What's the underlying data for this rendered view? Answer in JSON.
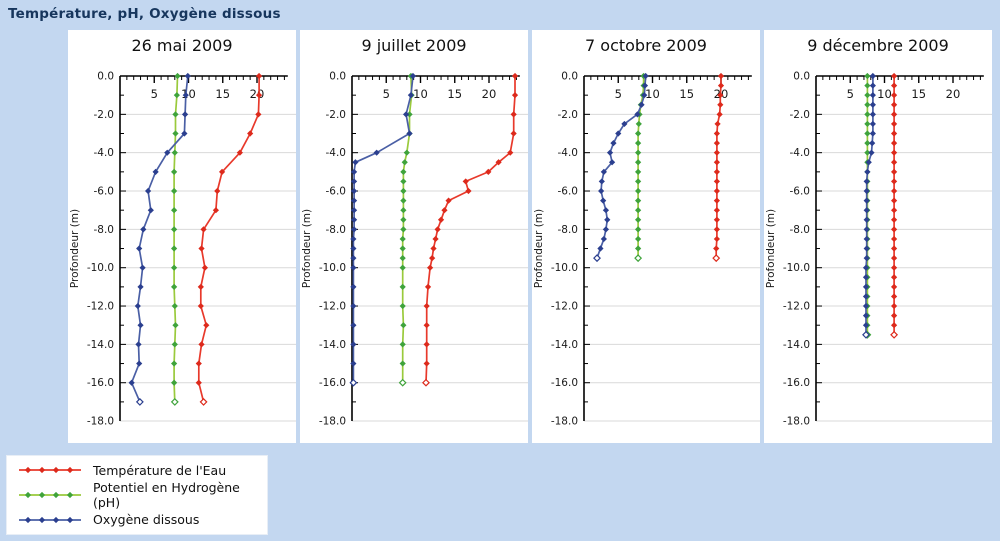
{
  "page": {
    "title": "Température, pH, Oxygène dissous"
  },
  "colors": {
    "background": "#c3d7f0",
    "panel": "#ffffff",
    "page_title_text": "#17365d",
    "chart_title_text": "#111111",
    "grid": "#d9d9d9",
    "axis": "#000000",
    "tick_label": "#1a1a1a",
    "temperature_line": "#e8392b",
    "temperature_marker": "#dd2a1c",
    "ph_line": "#9aca3c",
    "ph_marker": "#3fa33b",
    "oxygen_line": "#4a5fa5",
    "oxygen_marker": "#2b3f8f"
  },
  "axes": {
    "x": {
      "min": 0,
      "max": 24.5,
      "label_ticks": [
        5,
        10,
        15,
        20
      ],
      "minor_step": 1
    },
    "y": {
      "min": -18,
      "max": 0,
      "label": "Profondeur (m)",
      "label_step": 2,
      "minor_step": 1,
      "labels": [
        "0.0",
        "-2.0",
        "-4.0",
        "-6.0",
        "-8.0",
        "-10.0",
        "-12.0",
        "-14.0",
        "-16.0",
        "-18.0"
      ]
    }
  },
  "legend": {
    "items": [
      {
        "label": "Température de l'Eau",
        "series": "temperature"
      },
      {
        "label": "Potentiel en Hydrogène (pH)",
        "series": "ph"
      },
      {
        "label": "Oxygène dissous",
        "series": "oxygen"
      }
    ]
  },
  "chart_data": [
    {
      "type": "line",
      "title": "26 mai 2009",
      "xlabel": "",
      "ylabel": "Profondeur (m)",
      "xlim": [
        0,
        24.5
      ],
      "ylim": [
        -18,
        0
      ],
      "depths": [
        0,
        -1,
        -2,
        -3,
        -4,
        -5,
        -6,
        -7,
        -8,
        -9,
        -10,
        -11,
        -12,
        -13,
        -14,
        -15,
        -16,
        -17
      ],
      "series": [
        {
          "name": "temperature",
          "values": [
            20.3,
            20.3,
            20.2,
            19.0,
            17.5,
            14.9,
            14.2,
            14.0,
            12.2,
            11.9,
            12.4,
            11.8,
            11.8,
            12.6,
            11.9,
            11.5,
            11.5,
            12.2
          ]
        },
        {
          "name": "ph",
          "values": [
            8.4,
            8.3,
            8.1,
            8.1,
            8.0,
            7.9,
            7.9,
            7.9,
            7.9,
            7.9,
            7.9,
            7.9,
            8.0,
            8.1,
            8.0,
            7.9,
            7.9,
            8.0
          ]
        },
        {
          "name": "oxygen",
          "values": [
            9.9,
            9.6,
            9.5,
            9.4,
            6.9,
            5.2,
            4.1,
            4.5,
            3.4,
            2.8,
            3.3,
            3.0,
            2.6,
            3.0,
            2.7,
            2.8,
            1.7,
            2.9
          ]
        }
      ]
    },
    {
      "type": "line",
      "title": "9 juillet 2009",
      "xlabel": "",
      "ylabel": "Profondeur (m)",
      "xlim": [
        0,
        24.5
      ],
      "ylim": [
        -18,
        0
      ],
      "depths": [
        0,
        -1,
        -2,
        -3,
        -4,
        -4.5,
        -5,
        -5.5,
        -6,
        -6.5,
        -7,
        -7.5,
        -8,
        -8.5,
        -9,
        -9.5,
        -10,
        -11,
        -12,
        -13,
        -14,
        -15,
        -16
      ],
      "series": [
        {
          "name": "temperature",
          "values": [
            23.8,
            23.8,
            23.6,
            23.6,
            23.1,
            21.4,
            19.9,
            16.6,
            17.0,
            14.1,
            13.5,
            13.0,
            12.5,
            12.2,
            11.9,
            11.7,
            11.4,
            11.1,
            10.9,
            10.9,
            10.9,
            10.9,
            10.8
          ]
        },
        {
          "name": "ph",
          "values": [
            8.6,
            8.7,
            8.4,
            8.4,
            8.0,
            7.7,
            7.5,
            7.5,
            7.5,
            7.5,
            7.5,
            7.5,
            7.5,
            7.4,
            7.4,
            7.4,
            7.4,
            7.4,
            7.4,
            7.5,
            7.4,
            7.4,
            7.4
          ]
        },
        {
          "name": "oxygen",
          "values": [
            8.9,
            8.6,
            7.9,
            8.4,
            3.6,
            0.5,
            0.3,
            0.3,
            0.3,
            0.3,
            0.3,
            0.3,
            0.3,
            0.2,
            0.2,
            0.2,
            0.2,
            0.2,
            0.2,
            0.2,
            0.2,
            0.2,
            0.2
          ]
        }
      ]
    },
    {
      "type": "line",
      "title": "7 octobre 2009",
      "xlabel": "",
      "ylabel": "Profondeur (m)",
      "xlim": [
        0,
        24.5
      ],
      "ylim": [
        -18,
        0
      ],
      "depths": [
        0,
        -0.5,
        -1,
        -1.5,
        -2,
        -2.5,
        -3,
        -3.5,
        -4,
        -4.5,
        -5,
        -5.5,
        -6,
        -6.5,
        -7,
        -7.5,
        -8,
        -8.5,
        -9,
        -9.5
      ],
      "series": [
        {
          "name": "temperature",
          "values": [
            20.0,
            20.0,
            19.9,
            19.9,
            19.8,
            19.5,
            19.4,
            19.4,
            19.4,
            19.4,
            19.4,
            19.4,
            19.4,
            19.4,
            19.4,
            19.4,
            19.4,
            19.4,
            19.3,
            19.3
          ]
        },
        {
          "name": "ph",
          "values": [
            8.7,
            8.7,
            8.6,
            8.3,
            8.1,
            8.0,
            7.9,
            7.9,
            7.9,
            7.9,
            7.9,
            7.9,
            7.9,
            7.9,
            7.9,
            7.9,
            7.9,
            7.9,
            7.9,
            7.9
          ]
        },
        {
          "name": "oxygen",
          "values": [
            9.0,
            8.9,
            8.8,
            8.4,
            7.8,
            5.9,
            5.0,
            4.3,
            3.8,
            4.1,
            2.9,
            2.6,
            2.5,
            2.8,
            3.2,
            3.4,
            3.2,
            2.9,
            2.4,
            1.9
          ]
        }
      ]
    },
    {
      "type": "line",
      "title": "9 décembre 2009",
      "xlabel": "",
      "ylabel": "Profondeur (m)",
      "xlim": [
        0,
        24.5
      ],
      "ylim": [
        -18,
        0
      ],
      "depths": [
        0,
        -0.5,
        -1,
        -1.5,
        -2,
        -2.5,
        -3,
        -3.5,
        -4,
        -4.5,
        -5,
        -5.5,
        -6,
        -6.5,
        -7,
        -7.5,
        -8,
        -8.5,
        -9,
        -9.5,
        -10,
        -10.5,
        -11,
        -11.5,
        -12,
        -12.5,
        -13,
        -13.5
      ],
      "series": [
        {
          "name": "temperature",
          "values": [
            11.4,
            11.4,
            11.4,
            11.4,
            11.4,
            11.4,
            11.4,
            11.4,
            11.4,
            11.4,
            11.4,
            11.4,
            11.4,
            11.4,
            11.4,
            11.4,
            11.4,
            11.4,
            11.4,
            11.4,
            11.4,
            11.4,
            11.4,
            11.4,
            11.4,
            11.4,
            11.4,
            11.4
          ]
        },
        {
          "name": "ph",
          "values": [
            7.5,
            7.5,
            7.5,
            7.5,
            7.5,
            7.5,
            7.5,
            7.5,
            7.5,
            7.5,
            7.5,
            7.5,
            7.5,
            7.5,
            7.5,
            7.5,
            7.5,
            7.5,
            7.5,
            7.5,
            7.5,
            7.5,
            7.5,
            7.5,
            7.5,
            7.5,
            7.5,
            7.5
          ]
        },
        {
          "name": "oxygen",
          "values": [
            8.3,
            8.3,
            8.3,
            8.3,
            8.3,
            8.3,
            8.3,
            8.2,
            8.1,
            7.7,
            7.5,
            7.4,
            7.4,
            7.4,
            7.4,
            7.4,
            7.4,
            7.4,
            7.4,
            7.4,
            7.3,
            7.3,
            7.3,
            7.3,
            7.3,
            7.3,
            7.3,
            7.3
          ]
        }
      ]
    }
  ]
}
